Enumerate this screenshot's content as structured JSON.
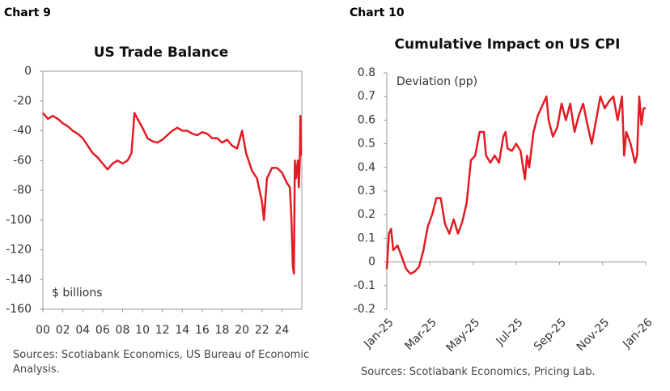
{
  "chart_data": [
    {
      "type": "line",
      "label": "Chart 9",
      "title": "US Trade Balance",
      "annotation": "$ billions",
      "source": "Sources: Scotiabank Economics, US Bureau of Economic Analysis.",
      "xlim": [
        2000,
        2026
      ],
      "ylim": [
        -160,
        0
      ],
      "xticks": [
        {
          "value": 2000,
          "label": "00"
        },
        {
          "value": 2002,
          "label": "02"
        },
        {
          "value": 2004,
          "label": "04"
        },
        {
          "value": 2006,
          "label": "06"
        },
        {
          "value": 2008,
          "label": "08"
        },
        {
          "value": 2010,
          "label": "10"
        },
        {
          "value": 2012,
          "label": "12"
        },
        {
          "value": 2014,
          "label": "14"
        },
        {
          "value": 2016,
          "label": "16"
        },
        {
          "value": 2018,
          "label": "18"
        },
        {
          "value": 2020,
          "label": "20"
        },
        {
          "value": 2022,
          "label": "22"
        },
        {
          "value": 2024,
          "label": "24"
        }
      ],
      "yticks": [
        0,
        -20,
        -40,
        -60,
        -80,
        -100,
        -120,
        -140,
        -160
      ],
      "series": [
        {
          "color": "#e31b23",
          "x": [
            2000,
            2000.5,
            2001,
            2001.5,
            2002,
            2002.5,
            2003,
            2003.5,
            2004,
            2004.5,
            2005,
            2005.5,
            2006,
            2006.5,
            2007,
            2007.5,
            2008,
            2008.5,
            2008.9,
            2009.2,
            2009.5,
            2010,
            2010.5,
            2011,
            2011.5,
            2012,
            2012.5,
            2013,
            2013.5,
            2014,
            2014.5,
            2015,
            2015.5,
            2016,
            2016.5,
            2017,
            2017.5,
            2018,
            2018.5,
            2019,
            2019.5,
            2020,
            2020.4,
            2020.8,
            2021,
            2021.5,
            2022,
            2022.2,
            2022.5,
            2023,
            2023.5,
            2024,
            2024.5,
            2024.8,
            2024.95,
            2025.1,
            2025.2,
            2025.3,
            2025.4,
            2025.6,
            2025.7,
            2025.8,
            2025.85,
            2025.9
          ],
          "values": [
            -28,
            -32,
            -30,
            -32,
            -35,
            -37,
            -40,
            -42,
            -45,
            -50,
            -55,
            -58,
            -62,
            -66,
            -62,
            -60,
            -62,
            -60,
            -55,
            -28,
            -32,
            -38,
            -45,
            -47,
            -48,
            -46,
            -43,
            -40,
            -38,
            -40,
            -40,
            -42,
            -43,
            -41,
            -42,
            -45,
            -45,
            -48,
            -46,
            -50,
            -52,
            -40,
            -55,
            -63,
            -67,
            -72,
            -88,
            -100,
            -72,
            -65,
            -65,
            -68,
            -75,
            -78,
            -98,
            -131,
            -136,
            -60,
            -72,
            -60,
            -78,
            -60,
            -30,
            -57
          ]
        }
      ]
    },
    {
      "type": "line",
      "label": "Chart 10",
      "title": "Cumulative Impact on US CPI",
      "annotation": "Deviation (pp)",
      "source": "Sources: Scotiabank Economics, Pricing Lab.",
      "xlim": [
        0,
        12
      ],
      "ylim": [
        -0.2,
        0.8
      ],
      "xticks": [
        {
          "value": 0,
          "label": "Jan-25"
        },
        {
          "value": 2,
          "label": "Mar-25"
        },
        {
          "value": 4,
          "label": "May-25"
        },
        {
          "value": 6,
          "label": "Jul-25"
        },
        {
          "value": 8,
          "label": "Sep-25"
        },
        {
          "value": 10,
          "label": "Nov-25"
        },
        {
          "value": 12,
          "label": "Jan-26"
        }
      ],
      "yticks": [
        0.8,
        0.7,
        0.6,
        0.5,
        0.4,
        0.3,
        0.2,
        0.1,
        0,
        -0.1,
        -0.2
      ],
      "series": [
        {
          "color": "#e31b23",
          "x": [
            0,
            0.1,
            0.2,
            0.3,
            0.5,
            0.7,
            0.9,
            1.1,
            1.3,
            1.5,
            1.7,
            1.9,
            2.1,
            2.3,
            2.5,
            2.7,
            2.9,
            3.1,
            3.3,
            3.5,
            3.7,
            3.9,
            4.1,
            4.3,
            4.5,
            4.6,
            4.8,
            5.0,
            5.2,
            5.4,
            5.5,
            5.6,
            5.8,
            6.0,
            6.2,
            6.4,
            6.5,
            6.6,
            6.8,
            7.0,
            7.2,
            7.4,
            7.5,
            7.7,
            7.9,
            8.1,
            8.3,
            8.5,
            8.7,
            8.9,
            9.1,
            9.3,
            9.5,
            9.7,
            9.9,
            10.1,
            10.3,
            10.5,
            10.7,
            10.9,
            11.0,
            11.1,
            11.3,
            11.5,
            11.6,
            11.7,
            11.8,
            11.9,
            12.0
          ],
          "values": [
            -0.03,
            0.12,
            0.14,
            0.05,
            0.07,
            0.02,
            -0.03,
            -0.05,
            -0.04,
            -0.02,
            0.05,
            0.15,
            0.2,
            0.27,
            0.27,
            0.16,
            0.12,
            0.18,
            0.12,
            0.17,
            0.25,
            0.43,
            0.45,
            0.55,
            0.55,
            0.45,
            0.42,
            0.45,
            0.42,
            0.53,
            0.55,
            0.48,
            0.47,
            0.5,
            0.47,
            0.35,
            0.45,
            0.4,
            0.55,
            0.62,
            0.66,
            0.7,
            0.6,
            0.53,
            0.57,
            0.67,
            0.6,
            0.67,
            0.55,
            0.62,
            0.67,
            0.58,
            0.5,
            0.6,
            0.7,
            0.65,
            0.68,
            0.7,
            0.6,
            0.7,
            0.45,
            0.55,
            0.5,
            0.42,
            0.45,
            0.7,
            0.58,
            0.65,
            0.65
          ]
        }
      ]
    }
  ]
}
